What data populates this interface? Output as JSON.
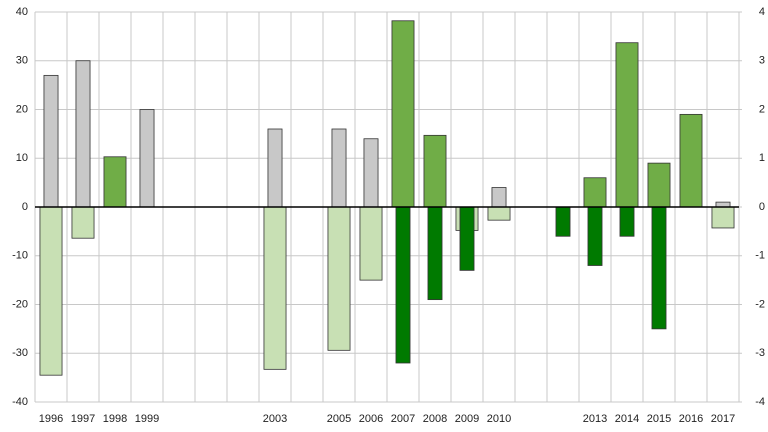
{
  "chart_data": {
    "type": "bar",
    "categories": [
      "1996",
      "1997",
      "1998",
      "1999",
      null,
      null,
      null,
      "2003",
      null,
      "2005",
      "2006",
      "2007",
      "2008",
      "2009",
      "2010",
      null,
      null,
      "2013",
      "2014",
      "2015",
      "2016",
      "2017"
    ],
    "series": [
      {
        "color": "#c8e0b4",
        "bar_width": "wide",
        "values": [
          -34.5,
          -6.4,
          null,
          null,
          null,
          null,
          null,
          -33.3,
          null,
          -29.4,
          -15,
          null,
          null,
          -4.8,
          -2.7,
          null,
          null,
          null,
          null,
          null,
          null,
          -4.3
        ]
      },
      {
        "color": "#70ad47",
        "bar_width": "wide",
        "values": [
          null,
          null,
          10.3,
          null,
          null,
          null,
          null,
          null,
          null,
          null,
          null,
          38.2,
          14.7,
          null,
          null,
          null,
          null,
          6,
          33.7,
          9,
          19,
          null
        ]
      },
      {
        "color": "#c8c8c8",
        "bar_width": "narrow",
        "values": [
          27,
          30,
          null,
          20,
          null,
          null,
          null,
          16,
          null,
          16,
          14,
          null,
          null,
          null,
          4,
          null,
          null,
          null,
          null,
          null,
          null,
          1
        ]
      },
      {
        "color": "#007a00",
        "bar_width": "narrow",
        "values": [
          null,
          null,
          null,
          null,
          null,
          null,
          null,
          null,
          null,
          null,
          null,
          -32,
          -19,
          -13,
          null,
          null,
          -6,
          -12,
          -6,
          -25,
          null,
          null
        ]
      }
    ],
    "ylim": [
      -40,
      40
    ],
    "yticks": [
      -40,
      -30,
      -20,
      -10,
      0,
      10,
      20,
      30,
      40
    ],
    "y2lim": [
      -4,
      4
    ],
    "y2ticks": [
      -4,
      -3,
      -2,
      -1,
      0,
      1,
      2,
      3,
      4
    ],
    "grid": true
  }
}
